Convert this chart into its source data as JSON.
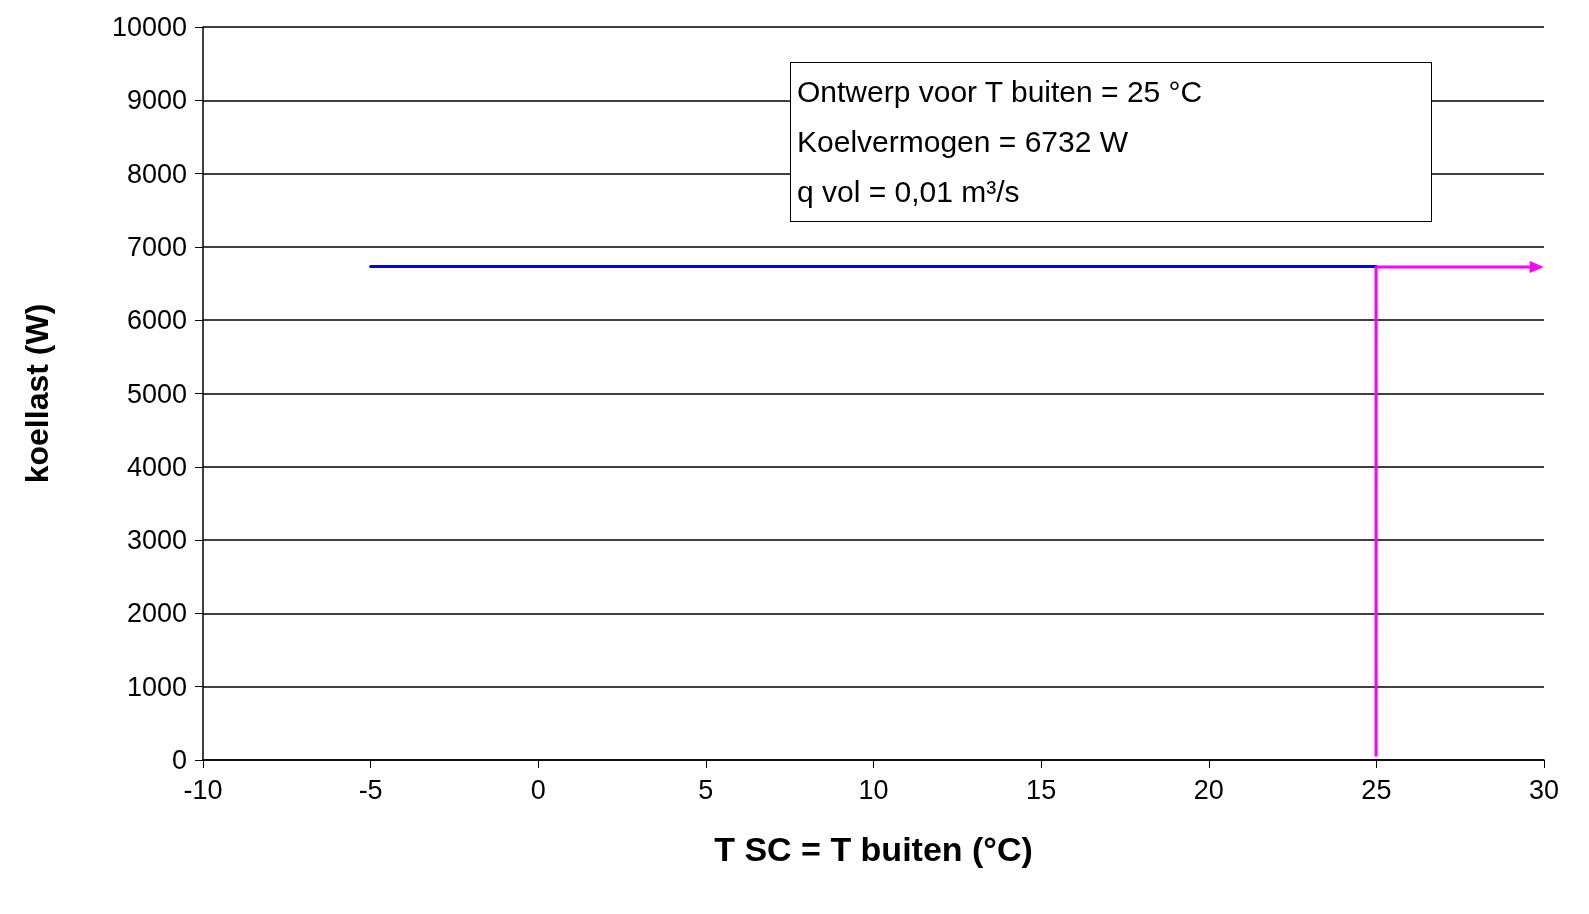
{
  "chart_data": {
    "type": "line",
    "xlabel": "T SC = T buiten (°C)",
    "ylabel": "koellast (W)",
    "annotations": [
      "Ontwerp voor T buiten = 25 °C",
      "Koelvermogen = 6732 W",
      "q vol = 0,01 m³/s"
    ],
    "series": [
      {
        "color": "#0000ff",
        "x": [
          -5,
          25
        ],
        "values": [
          6732,
          6732
        ]
      }
    ],
    "xlim": [
      -10,
      30
    ],
    "xticks": [
      -10,
      -5,
      0,
      5,
      10,
      15,
      20,
      25,
      30
    ],
    "ylim": [
      0,
      10000
    ],
    "yticks": [
      0,
      1000,
      2000,
      3000,
      4000,
      5000,
      6000,
      7000,
      8000,
      9000,
      10000
    ],
    "grid": "y",
    "marker": "none",
    "line_style": "solid"
  }
}
